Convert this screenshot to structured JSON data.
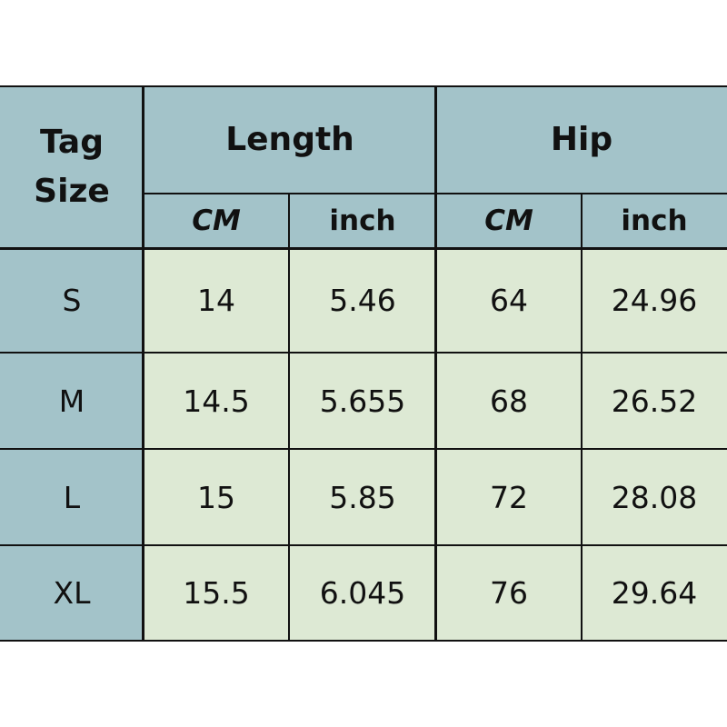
{
  "header": {
    "tag_size_line1": "Tag",
    "tag_size_line2": "Size",
    "length": "Length",
    "hip": "Hip"
  },
  "subheaders": [
    "CM",
    "inch",
    "CM",
    "inch"
  ],
  "rows": [
    {
      "size": "S",
      "length_cm": "14",
      "length_inch": "5.46",
      "hip_cm": "64",
      "hip_inch": "24.96"
    },
    {
      "size": "M",
      "length_cm": "14.5",
      "length_inch": "5.655",
      "hip_cm": "68",
      "hip_inch": "26.52"
    },
    {
      "size": "L",
      "length_cm": "15",
      "length_inch": "5.85",
      "hip_cm": "72",
      "hip_inch": "28.08"
    },
    {
      "size": "XL",
      "length_cm": "15.5",
      "length_inch": "6.045",
      "hip_cm": "76",
      "hip_inch": "29.64"
    }
  ],
  "colors": {
    "header": "#a3c3c9",
    "data": "#dde9d4",
    "border": "#111111"
  }
}
